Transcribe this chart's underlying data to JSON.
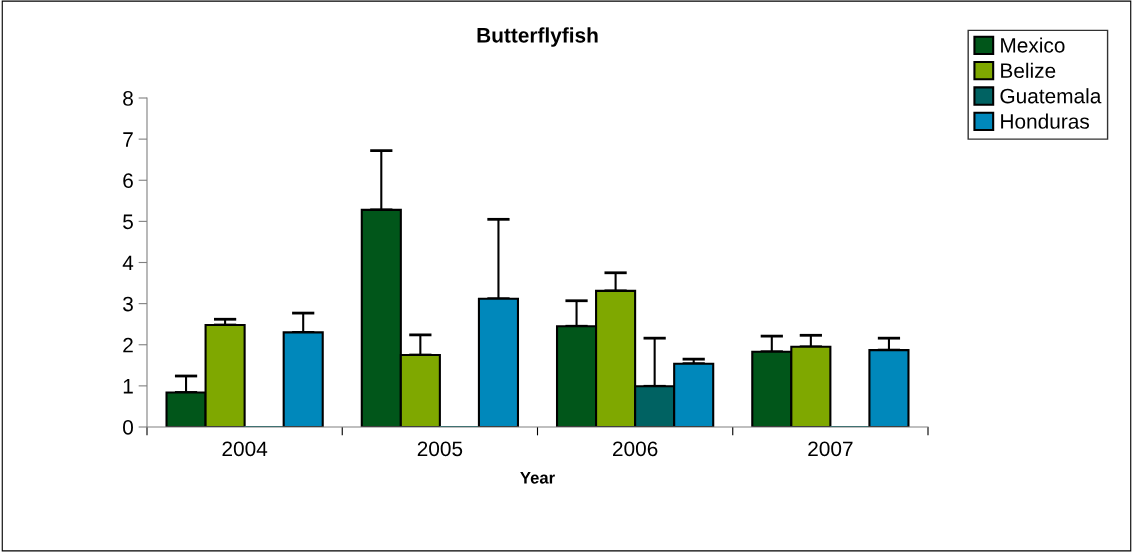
{
  "chart_data": {
    "type": "bar",
    "title": "Butterflyfish",
    "xlabel": "Year",
    "categories": [
      "2004",
      "2005",
      "2006",
      "2007"
    ],
    "series": [
      {
        "name": "Mexico",
        "color": "#01561a",
        "values": [
          0.84,
          5.28,
          2.45,
          1.83
        ],
        "errors": [
          [
            0.84,
            1.24
          ],
          [
            5.28,
            6.72
          ],
          [
            2.45,
            3.07
          ],
          [
            1.83,
            2.21
          ]
        ]
      },
      {
        "name": "Belize",
        "color": "#7fa800",
        "values": [
          2.48,
          1.75,
          3.31,
          1.95
        ],
        "errors": [
          [
            2.48,
            2.62
          ],
          [
            1.75,
            2.24
          ],
          [
            3.31,
            3.75
          ],
          [
            1.95,
            2.23
          ]
        ]
      },
      {
        "name": "Guatemala",
        "color": "#006262",
        "values": [
          0,
          0,
          0.99,
          0
        ],
        "errors": [
          null,
          null,
          [
            0.99,
            2.16
          ],
          null
        ]
      },
      {
        "name": "Honduras",
        "color": "#0088bb",
        "values": [
          2.3,
          3.12,
          1.54,
          1.87
        ],
        "errors": [
          [
            2.3,
            2.77
          ],
          [
            3.12,
            5.05
          ],
          [
            1.54,
            1.65
          ],
          [
            1.87,
            2.16
          ]
        ]
      }
    ],
    "ylim": [
      0,
      8
    ],
    "yticks": [
      0,
      1,
      2,
      3,
      4,
      5,
      6,
      7,
      8
    ],
    "grid": false,
    "legend": "top right"
  }
}
